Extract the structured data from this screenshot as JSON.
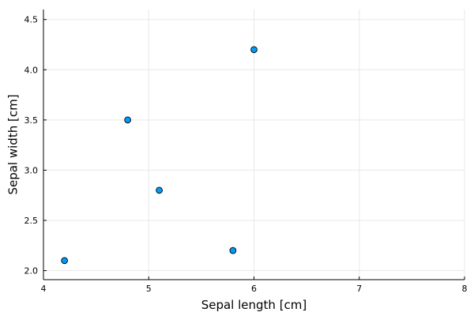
{
  "chart_data": {
    "type": "scatter",
    "title": "",
    "xlabel": "Sepal length [cm]",
    "ylabel": "Sepal width [cm]",
    "xlim": [
      4,
      8
    ],
    "ylim": [
      1.91,
      4.6
    ],
    "xticks": [
      4,
      5,
      6,
      7,
      8
    ],
    "xtick_labels": [
      "4",
      "5",
      "6",
      "7",
      "8"
    ],
    "yticks": [
      2.0,
      2.5,
      3.0,
      3.5,
      4.0,
      4.5
    ],
    "ytick_labels": [
      "2.0",
      "2.5",
      "3.0",
      "3.5",
      "4.0",
      "4.5"
    ],
    "grid": true,
    "legend": "none",
    "series": [
      {
        "color": "#009AFA",
        "points": [
          {
            "x": 4.2,
            "y": 2.1
          },
          {
            "x": 4.8,
            "y": 3.5
          },
          {
            "x": 5.1,
            "y": 2.8
          },
          {
            "x": 5.8,
            "y": 2.2
          },
          {
            "x": 6.0,
            "y": 4.2
          }
        ]
      }
    ]
  }
}
